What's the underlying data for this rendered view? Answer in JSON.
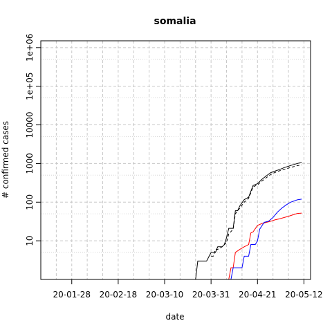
{
  "chart_data": {
    "type": "line",
    "title": "somalia",
    "xlabel": "date",
    "ylabel": "# confirmed cases",
    "y_scale": "log",
    "x_range": [
      "2020-01-14",
      "2020-05-15"
    ],
    "y_range": [
      1,
      1500000
    ],
    "grid": true,
    "x_ticks": [
      {
        "date": "2020-01-28",
        "label": "20-01-28"
      },
      {
        "date": "2020-02-18",
        "label": "20-02-18"
      },
      {
        "date": "2020-03-10",
        "label": "20-03-10"
      },
      {
        "date": "2020-03-31",
        "label": "20-03-31"
      },
      {
        "date": "2020-04-21",
        "label": "20-04-21"
      },
      {
        "date": "2020-05-12",
        "label": "20-05-12"
      }
    ],
    "x_minor_gridlines": [
      "2020-01-21",
      "2020-02-04",
      "2020-02-11",
      "2020-02-25",
      "2020-03-03",
      "2020-03-17",
      "2020-03-24",
      "2020-04-07",
      "2020-04-14",
      "2020-04-28",
      "2020-05-05"
    ],
    "y_ticks": [
      {
        "value": 10,
        "label": "10"
      },
      {
        "value": 100,
        "label": "100"
      },
      {
        "value": 1000,
        "label": "1000"
      },
      {
        "value": 10000,
        "label": "10000"
      },
      {
        "value": 100000,
        "label": "1e+05"
      },
      {
        "value": 1000000,
        "label": "1e+06"
      }
    ],
    "y_minor_gridlines": [
      5,
      50,
      500,
      5000,
      50000,
      500000
    ],
    "series": [
      {
        "color": "#000000",
        "dash": "none",
        "points": [
          [
            "2020-03-16",
            1
          ],
          [
            "2020-03-24",
            1
          ],
          [
            "2020-03-25",
            3
          ],
          [
            "2020-03-28",
            3
          ],
          [
            "2020-03-29",
            3
          ],
          [
            "2020-03-31",
            5
          ],
          [
            "2020-04-01",
            5
          ],
          [
            "2020-04-02",
            5
          ],
          [
            "2020-04-03",
            7
          ],
          [
            "2020-04-05",
            7
          ],
          [
            "2020-04-06",
            8
          ],
          [
            "2020-04-07",
            12
          ],
          [
            "2020-04-08",
            21
          ],
          [
            "2020-04-10",
            21
          ],
          [
            "2020-04-11",
            60
          ],
          [
            "2020-04-12",
            60
          ],
          [
            "2020-04-13",
            80
          ],
          [
            "2020-04-15",
            116
          ],
          [
            "2020-04-17",
            135
          ],
          [
            "2020-04-19",
            270
          ],
          [
            "2020-04-21",
            300
          ],
          [
            "2020-04-23",
            390
          ],
          [
            "2020-04-25",
            480
          ],
          [
            "2020-04-27",
            580
          ],
          [
            "2020-04-29",
            640
          ],
          [
            "2020-05-01",
            700
          ],
          [
            "2020-05-03",
            780
          ],
          [
            "2020-05-05",
            850
          ],
          [
            "2020-05-07",
            930
          ],
          [
            "2020-05-09",
            1000
          ],
          [
            "2020-05-11",
            1080
          ]
        ]
      },
      {
        "color": "#000000",
        "dash": "4,3",
        "points": [
          [
            "2020-03-31",
            4
          ],
          [
            "2020-04-01",
            4
          ],
          [
            "2020-04-02",
            6
          ],
          [
            "2020-04-03",
            6
          ],
          [
            "2020-04-05",
            7
          ],
          [
            "2020-04-07",
            9
          ],
          [
            "2020-04-08",
            15
          ],
          [
            "2020-04-10",
            20
          ],
          [
            "2020-04-11",
            50
          ],
          [
            "2020-04-13",
            70
          ],
          [
            "2020-04-15",
            100
          ],
          [
            "2020-04-17",
            125
          ],
          [
            "2020-04-19",
            250
          ],
          [
            "2020-04-21",
            280
          ],
          [
            "2020-04-23",
            350
          ],
          [
            "2020-04-25",
            430
          ],
          [
            "2020-04-27",
            520
          ],
          [
            "2020-04-29",
            590
          ],
          [
            "2020-05-01",
            650
          ],
          [
            "2020-05-03",
            700
          ],
          [
            "2020-05-05",
            760
          ],
          [
            "2020-05-07",
            820
          ],
          [
            "2020-05-09",
            880
          ],
          [
            "2020-05-11",
            920
          ]
        ]
      },
      {
        "color": "#ff0000",
        "dash": "none",
        "points": [
          [
            "2020-03-31",
            1
          ],
          [
            "2020-04-08",
            1
          ],
          [
            "2020-04-09",
            2
          ],
          [
            "2020-04-10",
            2
          ],
          [
            "2020-04-11",
            5
          ],
          [
            "2020-04-13",
            6
          ],
          [
            "2020-04-15",
            7
          ],
          [
            "2020-04-17",
            8
          ],
          [
            "2020-04-18",
            16
          ],
          [
            "2020-04-19",
            17
          ],
          [
            "2020-04-21",
            25
          ],
          [
            "2020-04-23",
            28
          ],
          [
            "2020-04-25",
            30
          ],
          [
            "2020-04-27",
            32
          ],
          [
            "2020-04-29",
            35
          ],
          [
            "2020-05-01",
            37
          ],
          [
            "2020-05-03",
            40
          ],
          [
            "2020-05-05",
            43
          ],
          [
            "2020-05-07",
            47
          ],
          [
            "2020-05-09",
            51
          ],
          [
            "2020-05-11",
            52
          ]
        ]
      },
      {
        "color": "#0000ff",
        "dash": "none",
        "points": [
          [
            "2020-03-31",
            1
          ],
          [
            "2020-04-09",
            1
          ],
          [
            "2020-04-10",
            2
          ],
          [
            "2020-04-13",
            2
          ],
          [
            "2020-04-14",
            2
          ],
          [
            "2020-04-15",
            4
          ],
          [
            "2020-04-17",
            4
          ],
          [
            "2020-04-18",
            8
          ],
          [
            "2020-04-20",
            8
          ],
          [
            "2020-04-21",
            10
          ],
          [
            "2020-04-22",
            20
          ],
          [
            "2020-04-24",
            30
          ],
          [
            "2020-04-26",
            32
          ],
          [
            "2020-04-28",
            40
          ],
          [
            "2020-04-30",
            55
          ],
          [
            "2020-05-02",
            70
          ],
          [
            "2020-05-04",
            85
          ],
          [
            "2020-05-06",
            100
          ],
          [
            "2020-05-09",
            115
          ],
          [
            "2020-05-11",
            120
          ]
        ]
      }
    ]
  }
}
